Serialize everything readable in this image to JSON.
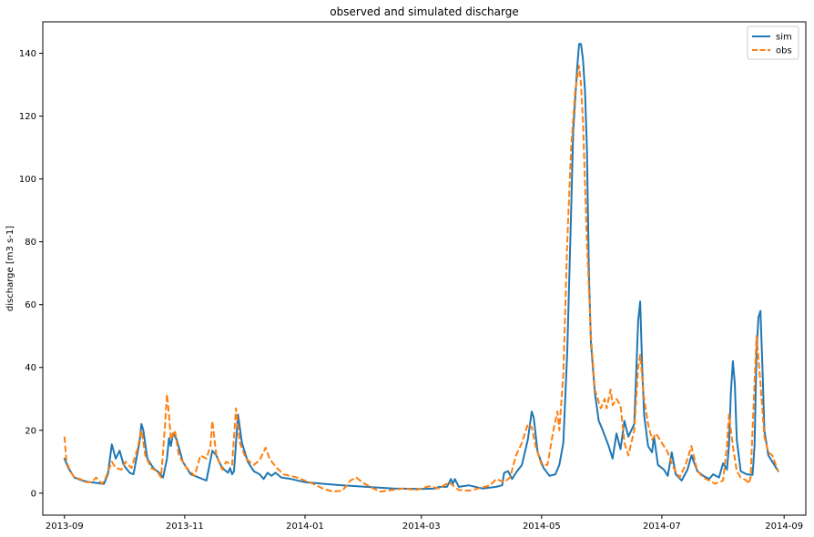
{
  "chart_data": {
    "type": "line",
    "title": "observed and simulated discharge",
    "xlabel": "",
    "ylabel": "discharge [m3 s-1]",
    "x_range": [
      "2013-08-21",
      "2014-09-12"
    ],
    "ylim": [
      -7,
      150
    ],
    "x_ticks": [
      "2013-09",
      "2013-11",
      "2014-01",
      "2014-03",
      "2014-05",
      "2014-07",
      "2014-09"
    ],
    "y_ticks": [
      0,
      20,
      40,
      60,
      80,
      100,
      120,
      140
    ],
    "grid": false,
    "legend": "top-right",
    "series": [
      {
        "name": "sim",
        "color": "#1f77b4",
        "style": "solid",
        "points": [
          [
            "2013-09-01",
            11
          ],
          [
            "2013-09-03",
            8
          ],
          [
            "2013-09-06",
            5
          ],
          [
            "2013-09-10",
            4
          ],
          [
            "2013-09-14",
            3.5
          ],
          [
            "2013-09-18",
            3.2
          ],
          [
            "2013-09-21",
            2.9
          ],
          [
            "2013-09-23",
            6
          ],
          [
            "2013-09-25",
            15.5
          ],
          [
            "2013-09-27",
            11
          ],
          [
            "2013-09-29",
            13.5
          ],
          [
            "2013-10-01",
            9
          ],
          [
            "2013-10-04",
            6.5
          ],
          [
            "2013-10-06",
            6
          ],
          [
            "2013-10-09",
            16
          ],
          [
            "2013-10-10",
            22
          ],
          [
            "2013-10-11",
            20
          ],
          [
            "2013-10-13",
            11
          ],
          [
            "2013-10-16",
            8
          ],
          [
            "2013-10-19",
            6.5
          ],
          [
            "2013-10-21",
            5
          ],
          [
            "2013-10-23",
            11
          ],
          [
            "2013-10-24",
            17.5
          ],
          [
            "2013-10-25",
            15
          ],
          [
            "2013-10-26",
            19
          ],
          [
            "2013-10-28",
            17
          ],
          [
            "2013-10-31",
            10
          ],
          [
            "2013-11-04",
            6
          ],
          [
            "2013-11-08",
            5
          ],
          [
            "2013-11-12",
            4
          ],
          [
            "2013-11-15",
            13.5
          ],
          [
            "2013-11-17",
            12
          ],
          [
            "2013-11-20",
            8
          ],
          [
            "2013-11-23",
            6.5
          ],
          [
            "2013-11-24",
            8
          ],
          [
            "2013-11-25",
            6
          ],
          [
            "2013-11-26",
            7
          ],
          [
            "2013-11-28",
            25
          ],
          [
            "2013-11-30",
            16
          ],
          [
            "2013-12-03",
            10
          ],
          [
            "2013-12-06",
            7
          ],
          [
            "2013-12-09",
            6
          ],
          [
            "2013-12-11",
            4.5
          ],
          [
            "2013-12-13",
            6.5
          ],
          [
            "2013-12-15",
            5.5
          ],
          [
            "2013-12-17",
            6.5
          ],
          [
            "2013-12-20",
            5
          ],
          [
            "2013-12-25",
            4.5
          ],
          [
            "2014-01-01",
            3.5
          ],
          [
            "2014-01-10",
            3
          ],
          [
            "2014-01-20",
            2.5
          ],
          [
            "2014-02-01",
            2
          ],
          [
            "2014-02-15",
            1.5
          ],
          [
            "2014-03-01",
            1.3
          ],
          [
            "2014-03-08",
            1.5
          ],
          [
            "2014-03-10",
            2
          ],
          [
            "2014-03-14",
            2
          ],
          [
            "2014-03-16",
            4.5
          ],
          [
            "2014-03-17",
            3
          ],
          [
            "2014-03-18",
            4.5
          ],
          [
            "2014-03-20",
            2
          ],
          [
            "2014-03-25",
            2.5
          ],
          [
            "2014-04-01",
            1.5
          ],
          [
            "2014-04-08",
            2
          ],
          [
            "2014-04-11",
            2.5
          ],
          [
            "2014-04-12",
            6.5
          ],
          [
            "2014-04-14",
            7
          ],
          [
            "2014-04-16",
            4.5
          ],
          [
            "2014-04-18",
            6.5
          ],
          [
            "2014-04-21",
            9
          ],
          [
            "2014-04-24",
            17
          ],
          [
            "2014-04-26",
            26
          ],
          [
            "2014-04-27",
            24
          ],
          [
            "2014-04-29",
            13
          ],
          [
            "2014-05-02",
            8
          ],
          [
            "2014-05-05",
            5.5
          ],
          [
            "2014-05-08",
            6
          ],
          [
            "2014-05-10",
            9
          ],
          [
            "2014-05-12",
            16
          ],
          [
            "2014-05-14",
            45
          ],
          [
            "2014-05-16",
            90
          ],
          [
            "2014-05-17",
            115
          ],
          [
            "2014-05-19",
            135
          ],
          [
            "2014-05-20",
            143
          ],
          [
            "2014-05-21",
            143
          ],
          [
            "2014-05-22",
            138
          ],
          [
            "2014-05-23",
            128
          ],
          [
            "2014-05-24",
            110
          ],
          [
            "2014-05-25",
            70
          ],
          [
            "2014-05-26",
            48
          ],
          [
            "2014-05-28",
            32
          ],
          [
            "2014-05-30",
            23
          ],
          [
            "2014-06-01",
            20
          ],
          [
            "2014-06-04",
            15
          ],
          [
            "2014-06-06",
            11
          ],
          [
            "2014-06-08",
            19
          ],
          [
            "2014-06-10",
            14
          ],
          [
            "2014-06-12",
            23
          ],
          [
            "2014-06-14",
            18
          ],
          [
            "2014-06-17",
            22
          ],
          [
            "2014-06-19",
            55
          ],
          [
            "2014-06-20",
            61
          ],
          [
            "2014-06-21",
            40
          ],
          [
            "2014-06-22",
            25
          ],
          [
            "2014-06-24",
            15
          ],
          [
            "2014-06-26",
            13
          ],
          [
            "2014-06-27",
            18
          ],
          [
            "2014-06-29",
            9
          ],
          [
            "2014-07-02",
            7.5
          ],
          [
            "2014-07-04",
            5.5
          ],
          [
            "2014-07-06",
            13
          ],
          [
            "2014-07-08",
            6
          ],
          [
            "2014-07-11",
            4
          ],
          [
            "2014-07-14",
            7.5
          ],
          [
            "2014-07-16",
            12
          ],
          [
            "2014-07-19",
            7
          ],
          [
            "2014-07-22",
            5.5
          ],
          [
            "2014-07-25",
            4.5
          ],
          [
            "2014-07-27",
            6
          ],
          [
            "2014-07-30",
            5
          ],
          [
            "2014-08-01",
            9.5
          ],
          [
            "2014-08-03",
            7.5
          ],
          [
            "2014-08-04",
            15
          ],
          [
            "2014-08-05",
            32
          ],
          [
            "2014-08-06",
            42
          ],
          [
            "2014-08-07",
            35
          ],
          [
            "2014-08-08",
            17
          ],
          [
            "2014-08-10",
            7
          ],
          [
            "2014-08-13",
            6
          ],
          [
            "2014-08-16",
            5.8
          ],
          [
            "2014-08-17",
            15
          ],
          [
            "2014-08-18",
            45
          ],
          [
            "2014-08-19",
            56
          ],
          [
            "2014-08-20",
            58
          ],
          [
            "2014-08-21",
            40
          ],
          [
            "2014-08-22",
            20
          ],
          [
            "2014-08-24",
            12
          ],
          [
            "2014-08-26",
            10
          ],
          [
            "2014-08-29",
            7
          ]
        ]
      },
      {
        "name": "obs",
        "color": "#ff7f0e",
        "style": "dashed",
        "points": [
          [
            "2013-09-01",
            18
          ],
          [
            "2013-09-02",
            10
          ],
          [
            "2013-09-04",
            7
          ],
          [
            "2013-09-06",
            5
          ],
          [
            "2013-09-09",
            4.5
          ],
          [
            "2013-09-12",
            3.5
          ],
          [
            "2013-09-15",
            3.5
          ],
          [
            "2013-09-17",
            5
          ],
          [
            "2013-09-20",
            3
          ],
          [
            "2013-09-22",
            5
          ],
          [
            "2013-09-25",
            10
          ],
          [
            "2013-09-27",
            8
          ],
          [
            "2013-09-30",
            7.5
          ],
          [
            "2013-10-02",
            10
          ],
          [
            "2013-10-05",
            8
          ],
          [
            "2013-10-08",
            14
          ],
          [
            "2013-10-10",
            20
          ],
          [
            "2013-10-12",
            12
          ],
          [
            "2013-10-15",
            8
          ],
          [
            "2013-10-18",
            7
          ],
          [
            "2013-10-20",
            5
          ],
          [
            "2013-10-22",
            22
          ],
          [
            "2013-10-23",
            31.5
          ],
          [
            "2013-10-24",
            25
          ],
          [
            "2013-10-25",
            17
          ],
          [
            "2013-10-27",
            20
          ],
          [
            "2013-10-29",
            12
          ],
          [
            "2013-11-02",
            8
          ],
          [
            "2013-11-06",
            5.5
          ],
          [
            "2013-11-09",
            12
          ],
          [
            "2013-11-12",
            11
          ],
          [
            "2013-11-14",
            15
          ],
          [
            "2013-11-15",
            23
          ],
          [
            "2013-11-17",
            12
          ],
          [
            "2013-11-20",
            7.5
          ],
          [
            "2013-11-22",
            10
          ],
          [
            "2013-11-25",
            9
          ],
          [
            "2013-11-27",
            27
          ],
          [
            "2013-11-29",
            16
          ],
          [
            "2013-12-02",
            11
          ],
          [
            "2013-12-06",
            9
          ],
          [
            "2013-12-09",
            10.5
          ],
          [
            "2013-12-12",
            14.5
          ],
          [
            "2013-12-14",
            11
          ],
          [
            "2013-12-17",
            8.5
          ],
          [
            "2013-12-21",
            6
          ],
          [
            "2013-12-28",
            5
          ],
          [
            "2014-01-05",
            3
          ],
          [
            "2014-01-10",
            1.5
          ],
          [
            "2014-01-15",
            0.5
          ],
          [
            "2014-01-20",
            0.8
          ],
          [
            "2014-01-24",
            4
          ],
          [
            "2014-01-27",
            5
          ],
          [
            "2014-01-30",
            3.5
          ],
          [
            "2014-02-03",
            2
          ],
          [
            "2014-02-08",
            0.5
          ],
          [
            "2014-02-14",
            1
          ],
          [
            "2014-02-20",
            1.5
          ],
          [
            "2014-02-26",
            1
          ],
          [
            "2014-03-01",
            1.5
          ],
          [
            "2014-03-05",
            2.2
          ],
          [
            "2014-03-10",
            1.5
          ],
          [
            "2014-03-15",
            3.5
          ],
          [
            "2014-03-20",
            1
          ],
          [
            "2014-03-25",
            0.8
          ],
          [
            "2014-03-30",
            1.5
          ],
          [
            "2014-04-05",
            2.5
          ],
          [
            "2014-04-08",
            4.5
          ],
          [
            "2014-04-12",
            3.5
          ],
          [
            "2014-04-15",
            5
          ],
          [
            "2014-04-18",
            12
          ],
          [
            "2014-04-21",
            16
          ],
          [
            "2014-04-24",
            22
          ],
          [
            "2014-04-26",
            21
          ],
          [
            "2014-04-28",
            15
          ],
          [
            "2014-05-01",
            9
          ],
          [
            "2014-05-04",
            9
          ],
          [
            "2014-05-07",
            20
          ],
          [
            "2014-05-09",
            26
          ],
          [
            "2014-05-10",
            20
          ],
          [
            "2014-05-12",
            38
          ],
          [
            "2014-05-14",
            80
          ],
          [
            "2014-05-16",
            110
          ],
          [
            "2014-05-18",
            128
          ],
          [
            "2014-05-20",
            136
          ],
          [
            "2014-05-21",
            130
          ],
          [
            "2014-05-22",
            118
          ],
          [
            "2014-05-24",
            80
          ],
          [
            "2014-05-26",
            50
          ],
          [
            "2014-05-28",
            33
          ],
          [
            "2014-05-31",
            27
          ],
          [
            "2014-06-02",
            30
          ],
          [
            "2014-06-03",
            27
          ],
          [
            "2014-06-05",
            33
          ],
          [
            "2014-06-06",
            28
          ],
          [
            "2014-06-08",
            30
          ],
          [
            "2014-06-10",
            28
          ],
          [
            "2014-06-12",
            16
          ],
          [
            "2014-06-14",
            12
          ],
          [
            "2014-06-17",
            20
          ],
          [
            "2014-06-19",
            40
          ],
          [
            "2014-06-20",
            44
          ],
          [
            "2014-06-22",
            30
          ],
          [
            "2014-06-24",
            22
          ],
          [
            "2014-06-26",
            17
          ],
          [
            "2014-06-28",
            19
          ],
          [
            "2014-07-01",
            16
          ],
          [
            "2014-07-04",
            13
          ],
          [
            "2014-07-07",
            8
          ],
          [
            "2014-07-10",
            5
          ],
          [
            "2014-07-13",
            9
          ],
          [
            "2014-07-16",
            15
          ],
          [
            "2014-07-19",
            7
          ],
          [
            "2014-07-22",
            5
          ],
          [
            "2014-07-25",
            4
          ],
          [
            "2014-07-28",
            3
          ],
          [
            "2014-08-01",
            4
          ],
          [
            "2014-08-03",
            15
          ],
          [
            "2014-08-04",
            25
          ],
          [
            "2014-08-06",
            15
          ],
          [
            "2014-08-08",
            7
          ],
          [
            "2014-08-10",
            5
          ],
          [
            "2014-08-13",
            4
          ],
          [
            "2014-08-14",
            3
          ],
          [
            "2014-08-15",
            5
          ],
          [
            "2014-08-16",
            20
          ],
          [
            "2014-08-18",
            50
          ],
          [
            "2014-08-20",
            35
          ],
          [
            "2014-08-22",
            18
          ],
          [
            "2014-08-24",
            13
          ],
          [
            "2014-08-26",
            12
          ],
          [
            "2014-08-29",
            7
          ]
        ]
      }
    ]
  }
}
